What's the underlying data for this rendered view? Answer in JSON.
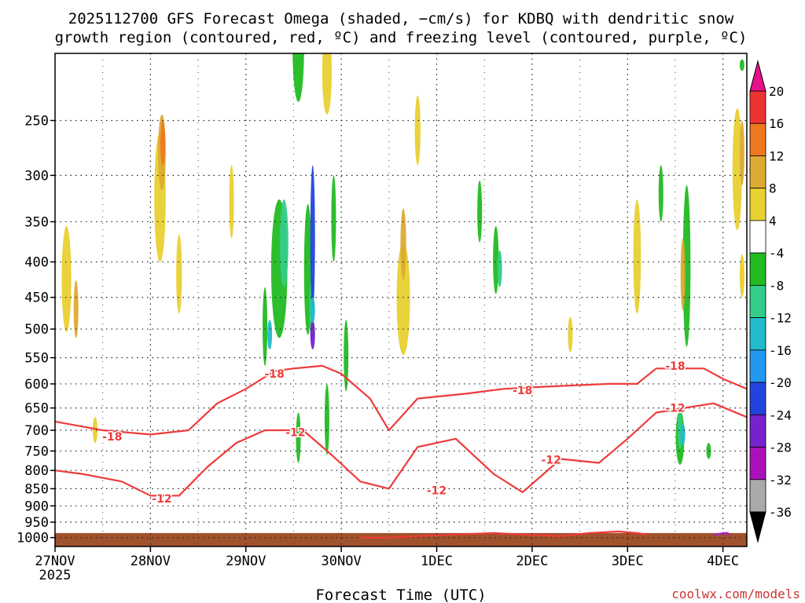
{
  "chart_data": {
    "type": "heatmap",
    "title_line1": "2025112700 GFS Forecast Omega (shaded, −cm/s) for KDBQ with dendritic snow",
    "title_line2": "growth region (contoured, red, ºC) and freezing level (contoured, purple, ºC)",
    "xlabel": "Forecast Time (UTC)",
    "ylabel": "",
    "credit": "coolwx.com/models",
    "x_ticks": [
      "27NOV",
      "28NOV",
      "29NOV",
      "30NOV",
      "1DEC",
      "2DEC",
      "3DEC",
      "4DEC"
    ],
    "x_sub": "2025",
    "xlim_days": [
      0,
      7.25
    ],
    "y_ticks": [
      250,
      300,
      350,
      400,
      450,
      500,
      550,
      600,
      650,
      700,
      750,
      800,
      850,
      900,
      950,
      1000
    ],
    "ylim_hpa": [
      200,
      1030
    ],
    "colorbar": {
      "labels": [
        "20",
        "16",
        "12",
        "8",
        "4",
        "-4",
        "-8",
        "-12",
        "-16",
        "-20",
        "-24",
        "-28",
        "-32",
        "-36"
      ],
      "colors": [
        "#e8108a",
        "#ee3333",
        "#ee7722",
        "#ddaa33",
        "#e8d030",
        "#ffffff",
        "#22bb22",
        "#33cc88",
        "#22bbcc",
        "#2299ee",
        "#2244dd",
        "#7722cc",
        "#aa11bb",
        "#aaaaaa",
        "#000000"
      ]
    },
    "omega_blobs": [
      {
        "x": 0.12,
        "p": 430,
        "w": 0.1,
        "h": 150,
        "c": 4
      },
      {
        "x": 0.22,
        "p": 470,
        "w": 0.05,
        "h": 90,
        "c": 3
      },
      {
        "x": 0.42,
        "p": 700,
        "w": 0.03,
        "h": 60,
        "c": 4
      },
      {
        "x": 1.1,
        "p": 330,
        "w": 0.12,
        "h": 140,
        "c": 4
      },
      {
        "x": 1.12,
        "p": 280,
        "w": 0.08,
        "h": 70,
        "c": 3
      },
      {
        "x": 1.13,
        "p": 270,
        "w": 0.05,
        "h": 40,
        "c": 2
      },
      {
        "x": 1.3,
        "p": 420,
        "w": 0.06,
        "h": 110,
        "c": 4
      },
      {
        "x": 1.85,
        "p": 330,
        "w": 0.04,
        "h": 80,
        "c": 4
      },
      {
        "x": 2.35,
        "p": 420,
        "w": 0.17,
        "h": 190,
        "c": 6
      },
      {
        "x": 2.4,
        "p": 380,
        "w": 0.09,
        "h": 110,
        "c": 7
      },
      {
        "x": 2.2,
        "p": 500,
        "w": 0.05,
        "h": 130,
        "c": 6
      },
      {
        "x": 2.25,
        "p": 510,
        "w": 0.03,
        "h": 50,
        "c": 8
      },
      {
        "x": 2.65,
        "p": 420,
        "w": 0.08,
        "h": 180,
        "c": 6
      },
      {
        "x": 2.69,
        "p": 470,
        "w": 0.04,
        "h": 100,
        "c": 7
      },
      {
        "x": 2.7,
        "p": 380,
        "w": 0.025,
        "h": 180,
        "c": 10
      },
      {
        "x": 2.7,
        "p": 510,
        "w": 0.03,
        "h": 50,
        "c": 11
      },
      {
        "x": 2.7,
        "p": 470,
        "w": 0.04,
        "h": 40,
        "c": 8
      },
      {
        "x": 2.85,
        "p": 680,
        "w": 0.04,
        "h": 160,
        "c": 6
      },
      {
        "x": 2.55,
        "p": 720,
        "w": 0.03,
        "h": 120,
        "c": 6
      },
      {
        "x": 2.92,
        "p": 350,
        "w": 0.04,
        "h": 100,
        "c": 6
      },
      {
        "x": 3.05,
        "p": 550,
        "w": 0.04,
        "h": 130,
        "c": 6
      },
      {
        "x": 2.55,
        "p": 200,
        "w": 0.12,
        "h": 70,
        "c": 6
      },
      {
        "x": 2.85,
        "p": 215,
        "w": 0.1,
        "h": 60,
        "c": 4
      },
      {
        "x": 3.65,
        "p": 460,
        "w": 0.14,
        "h": 170,
        "c": 4
      },
      {
        "x": 3.65,
        "p": 380,
        "w": 0.06,
        "h": 90,
        "c": 3
      },
      {
        "x": 3.8,
        "p": 260,
        "w": 0.06,
        "h": 60,
        "c": 4
      },
      {
        "x": 4.45,
        "p": 340,
        "w": 0.04,
        "h": 70,
        "c": 6
      },
      {
        "x": 4.62,
        "p": 400,
        "w": 0.06,
        "h": 90,
        "c": 6
      },
      {
        "x": 4.66,
        "p": 410,
        "w": 0.02,
        "h": 50,
        "c": 7
      },
      {
        "x": 5.4,
        "p": 510,
        "w": 0.05,
        "h": 60,
        "c": 4
      },
      {
        "x": 6.1,
        "p": 400,
        "w": 0.08,
        "h": 150,
        "c": 4
      },
      {
        "x": 6.35,
        "p": 320,
        "w": 0.04,
        "h": 60,
        "c": 6
      },
      {
        "x": 6.62,
        "p": 420,
        "w": 0.08,
        "h": 220,
        "c": 6
      },
      {
        "x": 6.58,
        "p": 420,
        "w": 0.04,
        "h": 100,
        "c": 3
      },
      {
        "x": 6.55,
        "p": 720,
        "w": 0.09,
        "h": 130,
        "c": 6
      },
      {
        "x": 6.55,
        "p": 700,
        "w": 0.05,
        "h": 90,
        "c": 7
      },
      {
        "x": 6.58,
        "p": 710,
        "w": 0.03,
        "h": 50,
        "c": 8
      },
      {
        "x": 6.85,
        "p": 750,
        "w": 0.03,
        "h": 40,
        "c": 6
      },
      {
        "x": 7.15,
        "p": 300,
        "w": 0.1,
        "h": 120,
        "c": 4
      },
      {
        "x": 7.2,
        "p": 280,
        "w": 0.05,
        "h": 60,
        "c": 3
      },
      {
        "x": 7.2,
        "p": 420,
        "w": 0.05,
        "h": 60,
        "c": 4
      },
      {
        "x": 7.2,
        "p": 208,
        "w": 0.03,
        "h": 8,
        "c": 6
      }
    ],
    "dgz_contours": [
      {
        "label": "-18",
        "x": [
          0,
          0.5,
          1.0,
          1.4,
          1.7,
          2.0,
          2.3,
          2.5,
          2.8,
          3.0,
          3.3,
          3.5,
          3.8,
          4.3,
          4.7,
          5.2,
          5.8,
          6.1,
          6.3,
          6.6,
          6.8,
          7.0,
          7.25
        ],
        "p": [
          680,
          700,
          710,
          700,
          640,
          610,
          575,
          570,
          565,
          580,
          630,
          700,
          630,
          620,
          610,
          605,
          600,
          600,
          570,
          570,
          570,
          590,
          610
        ]
      },
      {
        "label": "-12",
        "x": [
          0,
          0.3,
          0.7,
          1.0,
          1.3,
          1.6,
          1.9,
          2.2,
          2.6,
          2.9,
          3.2,
          3.5,
          3.8,
          4.2,
          4.6,
          4.9,
          5.3,
          5.7,
          6.0,
          6.3,
          6.6,
          6.9,
          7.25
        ],
        "p": [
          800,
          810,
          830,
          870,
          870,
          790,
          730,
          700,
          700,
          760,
          830,
          850,
          740,
          720,
          810,
          860,
          770,
          780,
          720,
          660,
          650,
          640,
          670
        ]
      }
    ],
    "dgz_labels": [
      {
        "text": "-18",
        "x": 0.6,
        "p": 715
      },
      {
        "text": "-18",
        "x": 2.3,
        "p": 580
      },
      {
        "text": "-18",
        "x": 4.9,
        "p": 613
      },
      {
        "text": "-18",
        "x": 6.5,
        "p": 565
      },
      {
        "text": "-12",
        "x": 1.12,
        "p": 878
      },
      {
        "text": "-12",
        "x": 2.52,
        "p": 705
      },
      {
        "text": "-12",
        "x": 4.0,
        "p": 855
      },
      {
        "text": "-12",
        "x": 5.2,
        "p": 772
      },
      {
        "text": "-12",
        "x": 6.5,
        "p": 650
      }
    ],
    "freezing_segments": [
      {
        "x": [
          3.2,
          3.5,
          3.8,
          4.2,
          4.6,
          4.9,
          5.3,
          5.6,
          5.9,
          6.1,
          6.2
        ],
        "p": [
          1000,
          1000,
          995,
          990,
          985,
          990,
          995,
          985,
          980,
          985,
          990
        ]
      },
      {
        "x": [
          6.9,
          7.0,
          7.05,
          7.05
        ],
        "p": [
          992,
          985,
          985,
          995
        ]
      }
    ],
    "terrain_top_hpa": 985
  }
}
